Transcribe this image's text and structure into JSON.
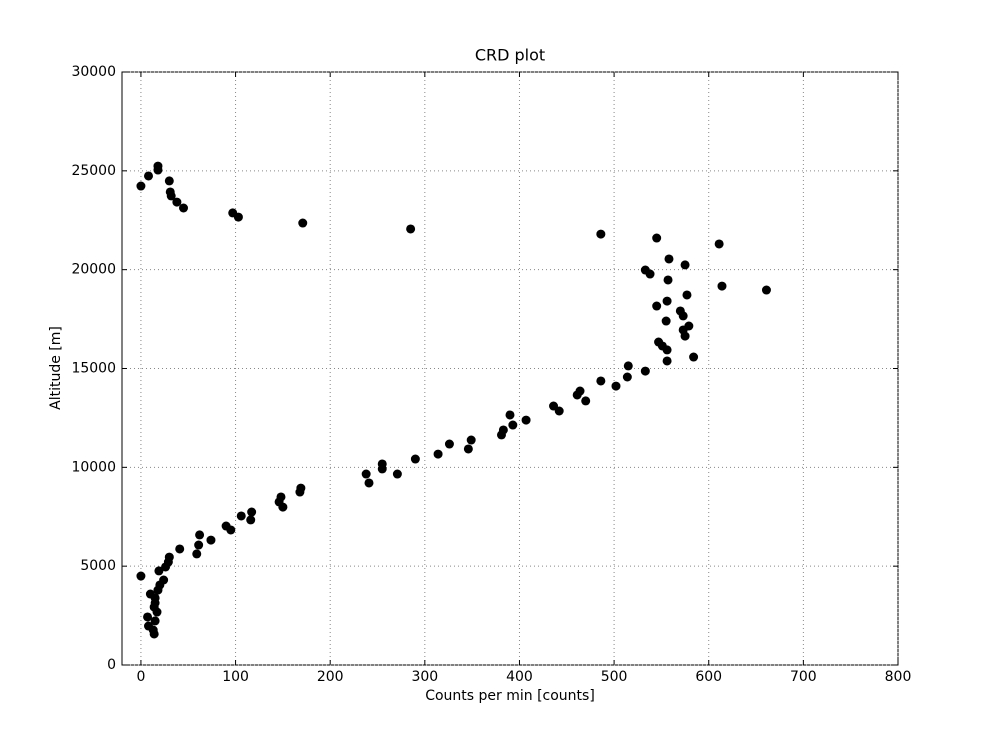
{
  "chart_data": {
    "type": "scatter",
    "title": "CRD plot",
    "x_label": "Counts per min [counts]",
    "y_label": "Altitude [m]",
    "color": "#000000",
    "grid": true,
    "xlim": [
      -20,
      800
    ],
    "ylim": [
      0,
      30000
    ],
    "xticks": [
      0,
      100,
      200,
      300,
      400,
      500,
      600,
      700,
      800
    ],
    "yticks": [
      0,
      5000,
      10000,
      15000,
      20000,
      25000,
      30000
    ],
    "x": [
      0,
      8,
      18,
      18,
      30,
      31,
      32,
      38,
      45,
      97,
      103,
      171,
      285,
      486,
      545,
      611,
      558,
      533,
      538,
      575,
      557,
      614,
      661,
      577,
      556,
      545,
      570,
      573,
      555,
      579,
      573,
      575,
      547,
      551,
      556,
      584,
      556,
      515,
      533,
      514,
      486,
      502,
      464,
      461,
      470,
      436,
      442,
      390,
      407,
      393,
      383,
      381,
      349,
      326,
      346,
      314,
      290,
      255,
      255,
      238,
      271,
      241,
      169,
      168,
      148,
      146,
      150,
      117,
      106,
      116,
      90,
      95,
      62,
      74,
      61,
      41,
      59,
      30,
      29,
      26,
      19,
      0,
      24,
      20,
      18,
      10,
      15,
      15,
      14,
      17,
      7,
      15,
      8,
      13,
      14
    ],
    "y": [
      24230,
      24740,
      25240,
      25040,
      24490,
      23930,
      23730,
      23420,
      23120,
      22870,
      22660,
      22360,
      22060,
      21800,
      21600,
      21300,
      20540,
      19980,
      19780,
      20240,
      19480,
      19170,
      18970,
      18720,
      18410,
      18160,
      17910,
      17660,
      17400,
      17150,
      16950,
      16640,
      16340,
      16140,
      15940,
      15580,
      15380,
      15130,
      14870,
      14570,
      14370,
      14110,
      13860,
      13660,
      13360,
      13100,
      12850,
      12650,
      12390,
      12140,
      11890,
      11640,
      11380,
      11180,
      10930,
      10670,
      10420,
      10170,
      9920,
      9660,
      9660,
      9210,
      8950,
      8750,
      8500,
      8250,
      7990,
      7740,
      7540,
      7340,
      7030,
      6830,
      6580,
      6320,
      6070,
      5870,
      5620,
      5460,
      5210,
      4960,
      4760,
      4500,
      4300,
      4050,
      3790,
      3590,
      3390,
      3140,
      2930,
      2680,
      2430,
      2230,
      1970,
      1770,
      1570
    ]
  }
}
